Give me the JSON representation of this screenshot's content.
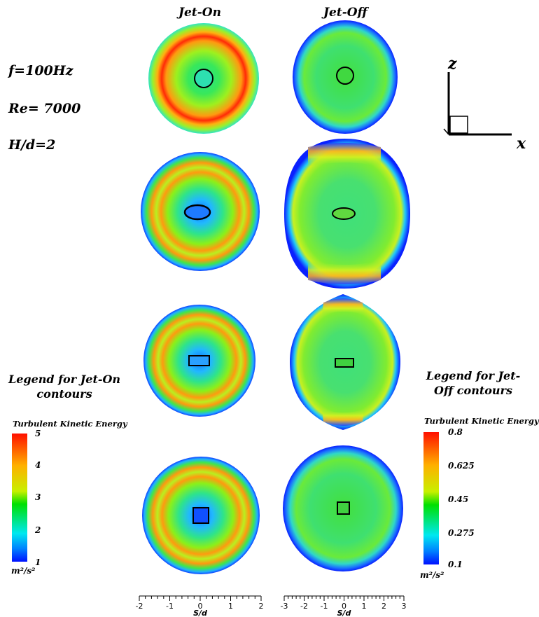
{
  "columns": {
    "jet_on": "Jet-On",
    "jet_off": "Jet-Off"
  },
  "params": {
    "frequency": "f=100Hz",
    "reynolds": "Re= 7000",
    "ratio": "H/d=2"
  },
  "coord_axes": {
    "vertical": "z",
    "horizontal": "x"
  },
  "legend_on": {
    "title": "Legend for Jet-On contours",
    "colorbar_title": "Turbulent Kinetic Energy",
    "ticks": [
      "5",
      "4",
      "3",
      "2",
      "1"
    ],
    "unit": "m²/s²"
  },
  "legend_off": {
    "title": "Legend for Jet-Off contours",
    "colorbar_title": "Turbulent Kinetic Energy",
    "ticks": [
      "0.8",
      "0.625",
      "0.45",
      "0.275",
      "0.1"
    ],
    "unit": "m²/s²"
  },
  "x_axis_on": {
    "label": "S/d",
    "ticks": [
      "-2",
      "-1",
      "0",
      "1",
      "2"
    ]
  },
  "x_axis_off": {
    "label": "S/d",
    "ticks": [
      "-3",
      "-2",
      "-1",
      "0",
      "1",
      "2",
      "3"
    ]
  },
  "nozzle_shapes": [
    "circle",
    "ellipse",
    "rectangle",
    "square"
  ],
  "colors": {
    "blue": "#0010ff",
    "cyan": "#00ffff",
    "green": "#00e000",
    "yellow": "#e0ff00",
    "orange": "#ff9000",
    "red": "#ff0000"
  }
}
